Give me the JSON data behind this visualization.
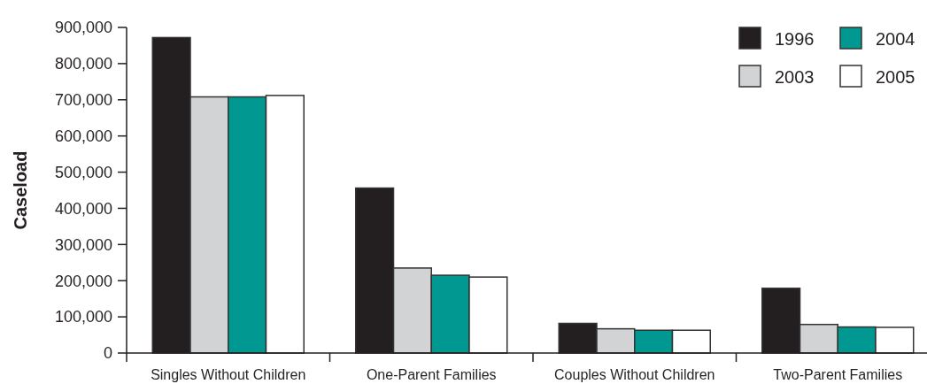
{
  "chart_data": {
    "type": "bar",
    "ylabel": "Caseload",
    "categories": [
      "Singles Without Children",
      "One-Parent Families",
      "Couples Without Children",
      "Two-Parent Families"
    ],
    "series": [
      {
        "name": "1996",
        "color": "#231f20",
        "values": [
          872000,
          456000,
          82000,
          179000
        ]
      },
      {
        "name": "2003",
        "color": "#d1d3d4",
        "values": [
          708000,
          235000,
          67000,
          79000
        ]
      },
      {
        "name": "2004",
        "color": "#009891",
        "values": [
          708000,
          215000,
          63000,
          72000
        ]
      },
      {
        "name": "2005",
        "color": "#ffffff",
        "values": [
          712000,
          210000,
          63000,
          71000
        ]
      }
    ],
    "ylim": [
      0,
      900000
    ],
    "yticks": [
      {
        "value": 0,
        "label": "0"
      },
      {
        "value": 100000,
        "label": "100,000"
      },
      {
        "value": 200000,
        "label": "200,000"
      },
      {
        "value": 300000,
        "label": "300,000"
      },
      {
        "value": 400000,
        "label": "400,000"
      },
      {
        "value": 500000,
        "label": "500,000"
      },
      {
        "value": 600000,
        "label": "600,000"
      },
      {
        "value": 700000,
        "label": "700,000"
      },
      {
        "value": 800000,
        "label": "800,000"
      },
      {
        "value": 900000,
        "label": "900,000"
      }
    ],
    "grid": false,
    "legend": "top right"
  }
}
